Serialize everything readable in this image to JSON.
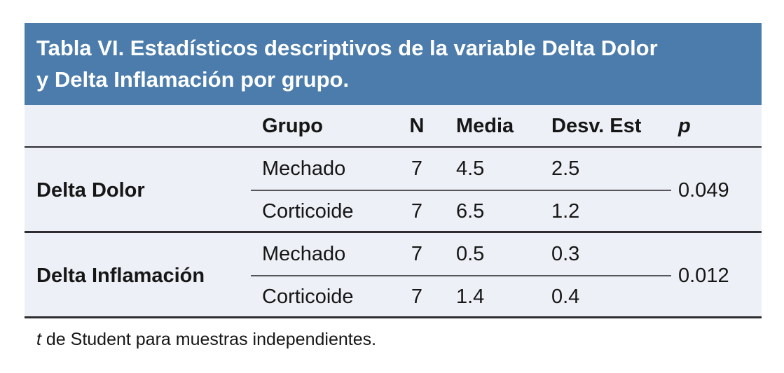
{
  "table": {
    "title_lines": [
      "Tabla VI. Estadísticos descriptivos de la variable Delta Dolor",
      "y Delta Inflamación por grupo."
    ],
    "header": {
      "variable": "",
      "grupo": "Grupo",
      "n": "N",
      "media": "Media",
      "desv": "Desv. Est",
      "p": "p"
    },
    "groups": [
      {
        "variable": "Delta Dolor",
        "p": "0.049",
        "rows": [
          {
            "grupo": "Mechado",
            "n": "7",
            "media": "4.5",
            "desv": "2.5"
          },
          {
            "grupo": "Corticoide",
            "n": "7",
            "media": "6.5",
            "desv": "1.2"
          }
        ]
      },
      {
        "variable": "Delta Inflamación",
        "p": "0.012",
        "rows": [
          {
            "grupo": "Mechado",
            "n": "7",
            "media": "0.5",
            "desv": "0.3"
          },
          {
            "grupo": "Corticoide",
            "n": "7",
            "media": "1.4",
            "desv": "0.4"
          }
        ]
      }
    ],
    "footnote": {
      "italic": "t",
      "rest": " de Student para muestras independientes."
    },
    "colors": {
      "title_bg": "#4B7CAB",
      "title_text": "#FFFFFF",
      "body_bg": "#EDF0F6",
      "line_dark": "#2C2C31",
      "line_mid": "#56575C",
      "text": "#161616"
    }
  }
}
